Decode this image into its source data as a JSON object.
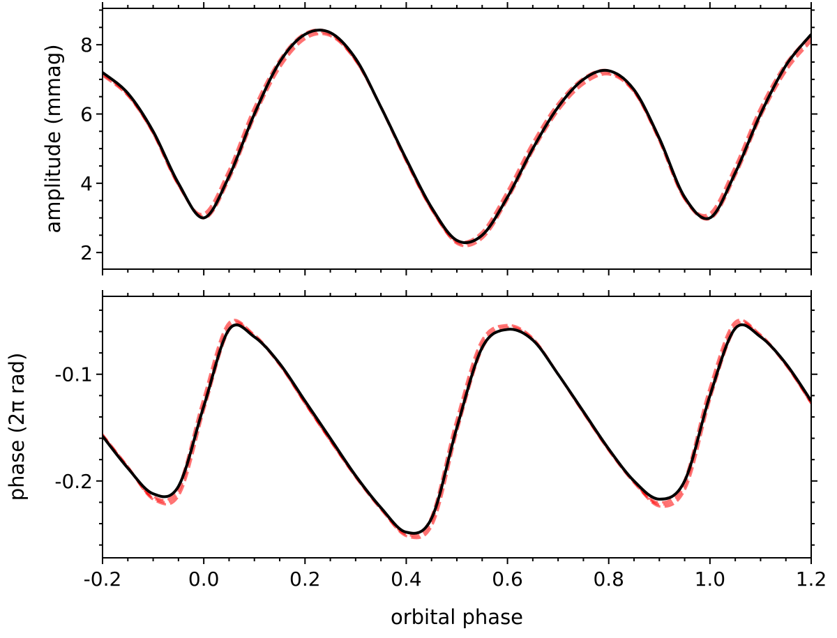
{
  "chart_data": [
    {
      "type": "line",
      "ylabel": "amplitude (mmag)",
      "xlim": [
        -0.2,
        1.2
      ],
      "ylim": [
        1.52,
        9.05
      ],
      "yticks": [
        2,
        4,
        6,
        8
      ],
      "ytick_labels": [
        "2",
        "4",
        "6",
        "8"
      ],
      "grid": false,
      "colors": {
        "model": "#000000",
        "fits": "#ff0000"
      },
      "x": [
        -0.2,
        -0.15,
        -0.1,
        -0.05,
        0.0,
        0.05,
        0.1,
        0.15,
        0.2,
        0.25,
        0.3,
        0.35,
        0.4,
        0.45,
        0.5,
        0.55,
        0.6,
        0.65,
        0.7,
        0.75,
        0.8,
        0.85,
        0.9,
        0.95,
        1.0,
        1.05,
        1.1,
        1.15,
        1.2
      ],
      "series": [
        {
          "style": "solid-black",
          "values": [
            7.2,
            6.6,
            5.5,
            4.0,
            3.0,
            4.2,
            6.0,
            7.5,
            8.3,
            8.35,
            7.6,
            6.2,
            4.7,
            3.3,
            2.35,
            2.5,
            3.6,
            5.0,
            6.2,
            7.0,
            7.25,
            6.7,
            5.3,
            3.6,
            3.0,
            4.3,
            6.0,
            7.4,
            8.3
          ]
        },
        {
          "style": "dashed-red",
          "values": [
            7.15,
            6.55,
            5.45,
            3.95,
            3.05,
            4.25,
            6.05,
            7.45,
            8.25,
            8.3,
            7.55,
            6.2,
            4.65,
            3.25,
            2.3,
            2.5,
            3.65,
            5.05,
            6.2,
            6.95,
            7.2,
            6.65,
            5.25,
            3.55,
            3.05,
            4.35,
            6.05,
            7.35,
            8.2
          ]
        }
      ]
    },
    {
      "type": "line",
      "xlabel": "orbital phase",
      "ylabel": "phase (2π rad)",
      "xlim": [
        -0.2,
        1.2
      ],
      "ylim": [
        -0.272,
        -0.027
      ],
      "xticks": [
        -0.2,
        0.0,
        0.2,
        0.4,
        0.6,
        0.8,
        1.0,
        1.2
      ],
      "xtick_labels": [
        "-0.2",
        "0.0",
        "0.2",
        "0.4",
        "0.6",
        "0.8",
        "1.0",
        "1.2"
      ],
      "yticks": [
        -0.2,
        -0.1
      ],
      "ytick_labels": [
        "-0.2",
        "-0.1"
      ],
      "grid": false,
      "colors": {
        "model": "#000000",
        "fits": "#ff0000"
      },
      "x": [
        -0.2,
        -0.15,
        -0.1,
        -0.05,
        0.0,
        0.05,
        0.1,
        0.15,
        0.2,
        0.25,
        0.3,
        0.35,
        0.4,
        0.45,
        0.5,
        0.55,
        0.6,
        0.65,
        0.7,
        0.75,
        0.8,
        0.85,
        0.9,
        0.95,
        1.0,
        1.05,
        1.1,
        1.15,
        1.2
      ],
      "series": [
        {
          "style": "solid-black",
          "values": [
            -0.158,
            -0.188,
            -0.212,
            -0.205,
            -0.13,
            -0.058,
            -0.065,
            -0.09,
            -0.125,
            -0.16,
            -0.195,
            -0.225,
            -0.248,
            -0.235,
            -0.15,
            -0.075,
            -0.058,
            -0.068,
            -0.1,
            -0.135,
            -0.17,
            -0.2,
            -0.217,
            -0.2,
            -0.12,
            -0.057,
            -0.065,
            -0.09,
            -0.125
          ]
        },
        {
          "style": "dashed-red",
          "values": [
            -0.157,
            -0.187,
            -0.216,
            -0.21,
            -0.128,
            -0.055,
            -0.064,
            -0.091,
            -0.127,
            -0.162,
            -0.196,
            -0.226,
            -0.25,
            -0.238,
            -0.148,
            -0.072,
            -0.056,
            -0.067,
            -0.1,
            -0.136,
            -0.171,
            -0.201,
            -0.222,
            -0.204,
            -0.118,
            -0.054,
            -0.064,
            -0.091,
            -0.127
          ]
        }
      ]
    }
  ]
}
